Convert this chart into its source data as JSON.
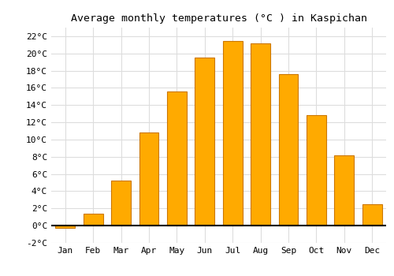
{
  "title": "Average monthly temperatures (°C ) in Kaspichan",
  "months": [
    "Jan",
    "Feb",
    "Mar",
    "Apr",
    "May",
    "Jun",
    "Jul",
    "Aug",
    "Sep",
    "Oct",
    "Nov",
    "Dec"
  ],
  "values": [
    -0.3,
    1.4,
    5.2,
    10.8,
    15.6,
    19.5,
    21.4,
    21.2,
    17.6,
    12.8,
    8.2,
    2.5
  ],
  "bar_color": "#FFAA00",
  "bar_edge_color": "#CC7700",
  "ylim": [
    -2,
    23
  ],
  "yticks": [
    -2,
    0,
    2,
    4,
    6,
    8,
    10,
    12,
    14,
    16,
    18,
    20,
    22
  ],
  "grid_color": "#dddddd",
  "background_color": "#ffffff",
  "title_fontsize": 9.5,
  "tick_fontsize": 8,
  "font_family": "monospace"
}
